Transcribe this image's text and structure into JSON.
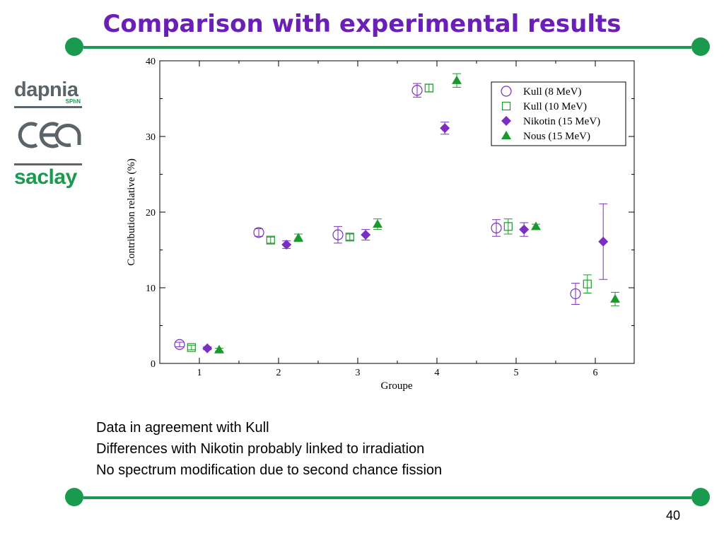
{
  "slide": {
    "title": "Comparison with experimental results",
    "page_number": "40",
    "bullets": [
      "Data in agreement with Kull",
      "Differences with Nikotin probably linked to irradiation",
      "No spectrum modification due to second chance fission"
    ],
    "logos": {
      "dapnia": "dapnia",
      "sphn": "SPhN",
      "cea": "cea",
      "saclay": "saclay"
    },
    "colors": {
      "title": "#6a1fb6",
      "rule": "#1a9a4f",
      "purple": "#7a2fc0",
      "green": "#1a9a2a"
    }
  },
  "chart_data": {
    "type": "scatter",
    "xlabel": "Groupe",
    "ylabel": "Contribution relative (%)",
    "xlim": [
      0.6,
      6.5
    ],
    "ylim": [
      0,
      40
    ],
    "xticks": [
      1,
      2,
      3,
      4,
      5,
      6
    ],
    "yticks": [
      0,
      10,
      20,
      30,
      40
    ],
    "legend_position": "top-right",
    "series": [
      {
        "name": "Kull (8 MeV)",
        "marker": "open-circle",
        "color": "#7a2fc0",
        "points": [
          {
            "x": 0.75,
            "y": 2.5,
            "err": 0.3
          },
          {
            "x": 1.75,
            "y": 17.3,
            "err": 0.5
          },
          {
            "x": 2.75,
            "y": 17.0,
            "err": 1.1
          },
          {
            "x": 3.75,
            "y": 36.1,
            "err": 0.9
          },
          {
            "x": 4.75,
            "y": 17.9,
            "err": 1.1
          },
          {
            "x": 5.75,
            "y": 9.2,
            "err": 1.4
          }
        ]
      },
      {
        "name": "Kull (10 MeV)",
        "marker": "open-square",
        "color": "#1a9a2a",
        "points": [
          {
            "x": 0.9,
            "y": 2.1,
            "err": 0.3
          },
          {
            "x": 1.9,
            "y": 16.3,
            "err": 0.4
          },
          {
            "x": 2.9,
            "y": 16.7,
            "err": 0.4
          },
          {
            "x": 3.9,
            "y": 36.4,
            "err": 0.5
          },
          {
            "x": 4.9,
            "y": 18.1,
            "err": 1.0
          },
          {
            "x": 5.9,
            "y": 10.5,
            "err": 1.2
          }
        ]
      },
      {
        "name": "Nikotin (15 MeV)",
        "marker": "filled-diamond",
        "color": "#7a2fc0",
        "points": [
          {
            "x": 1.1,
            "y": 2.0,
            "err": 0.2
          },
          {
            "x": 2.1,
            "y": 15.7,
            "err": 0.5
          },
          {
            "x": 3.1,
            "y": 17.0,
            "err": 0.7
          },
          {
            "x": 4.1,
            "y": 31.1,
            "err": 0.8
          },
          {
            "x": 5.1,
            "y": 17.7,
            "err": 0.9
          },
          {
            "x": 6.1,
            "y": 16.1,
            "err": 5.0
          }
        ]
      },
      {
        "name": "Nous (15 MeV)",
        "marker": "filled-triangle",
        "color": "#1a9a2a",
        "points": [
          {
            "x": 1.25,
            "y": 1.8,
            "err": 0.2
          },
          {
            "x": 2.25,
            "y": 16.6,
            "err": 0.5
          },
          {
            "x": 3.25,
            "y": 18.4,
            "err": 0.7
          },
          {
            "x": 4.25,
            "y": 37.4,
            "err": 0.9
          },
          {
            "x": 5.25,
            "y": 18.1,
            "err": 0.3
          },
          {
            "x": 6.25,
            "y": 8.5,
            "err": 0.9
          }
        ]
      }
    ]
  }
}
